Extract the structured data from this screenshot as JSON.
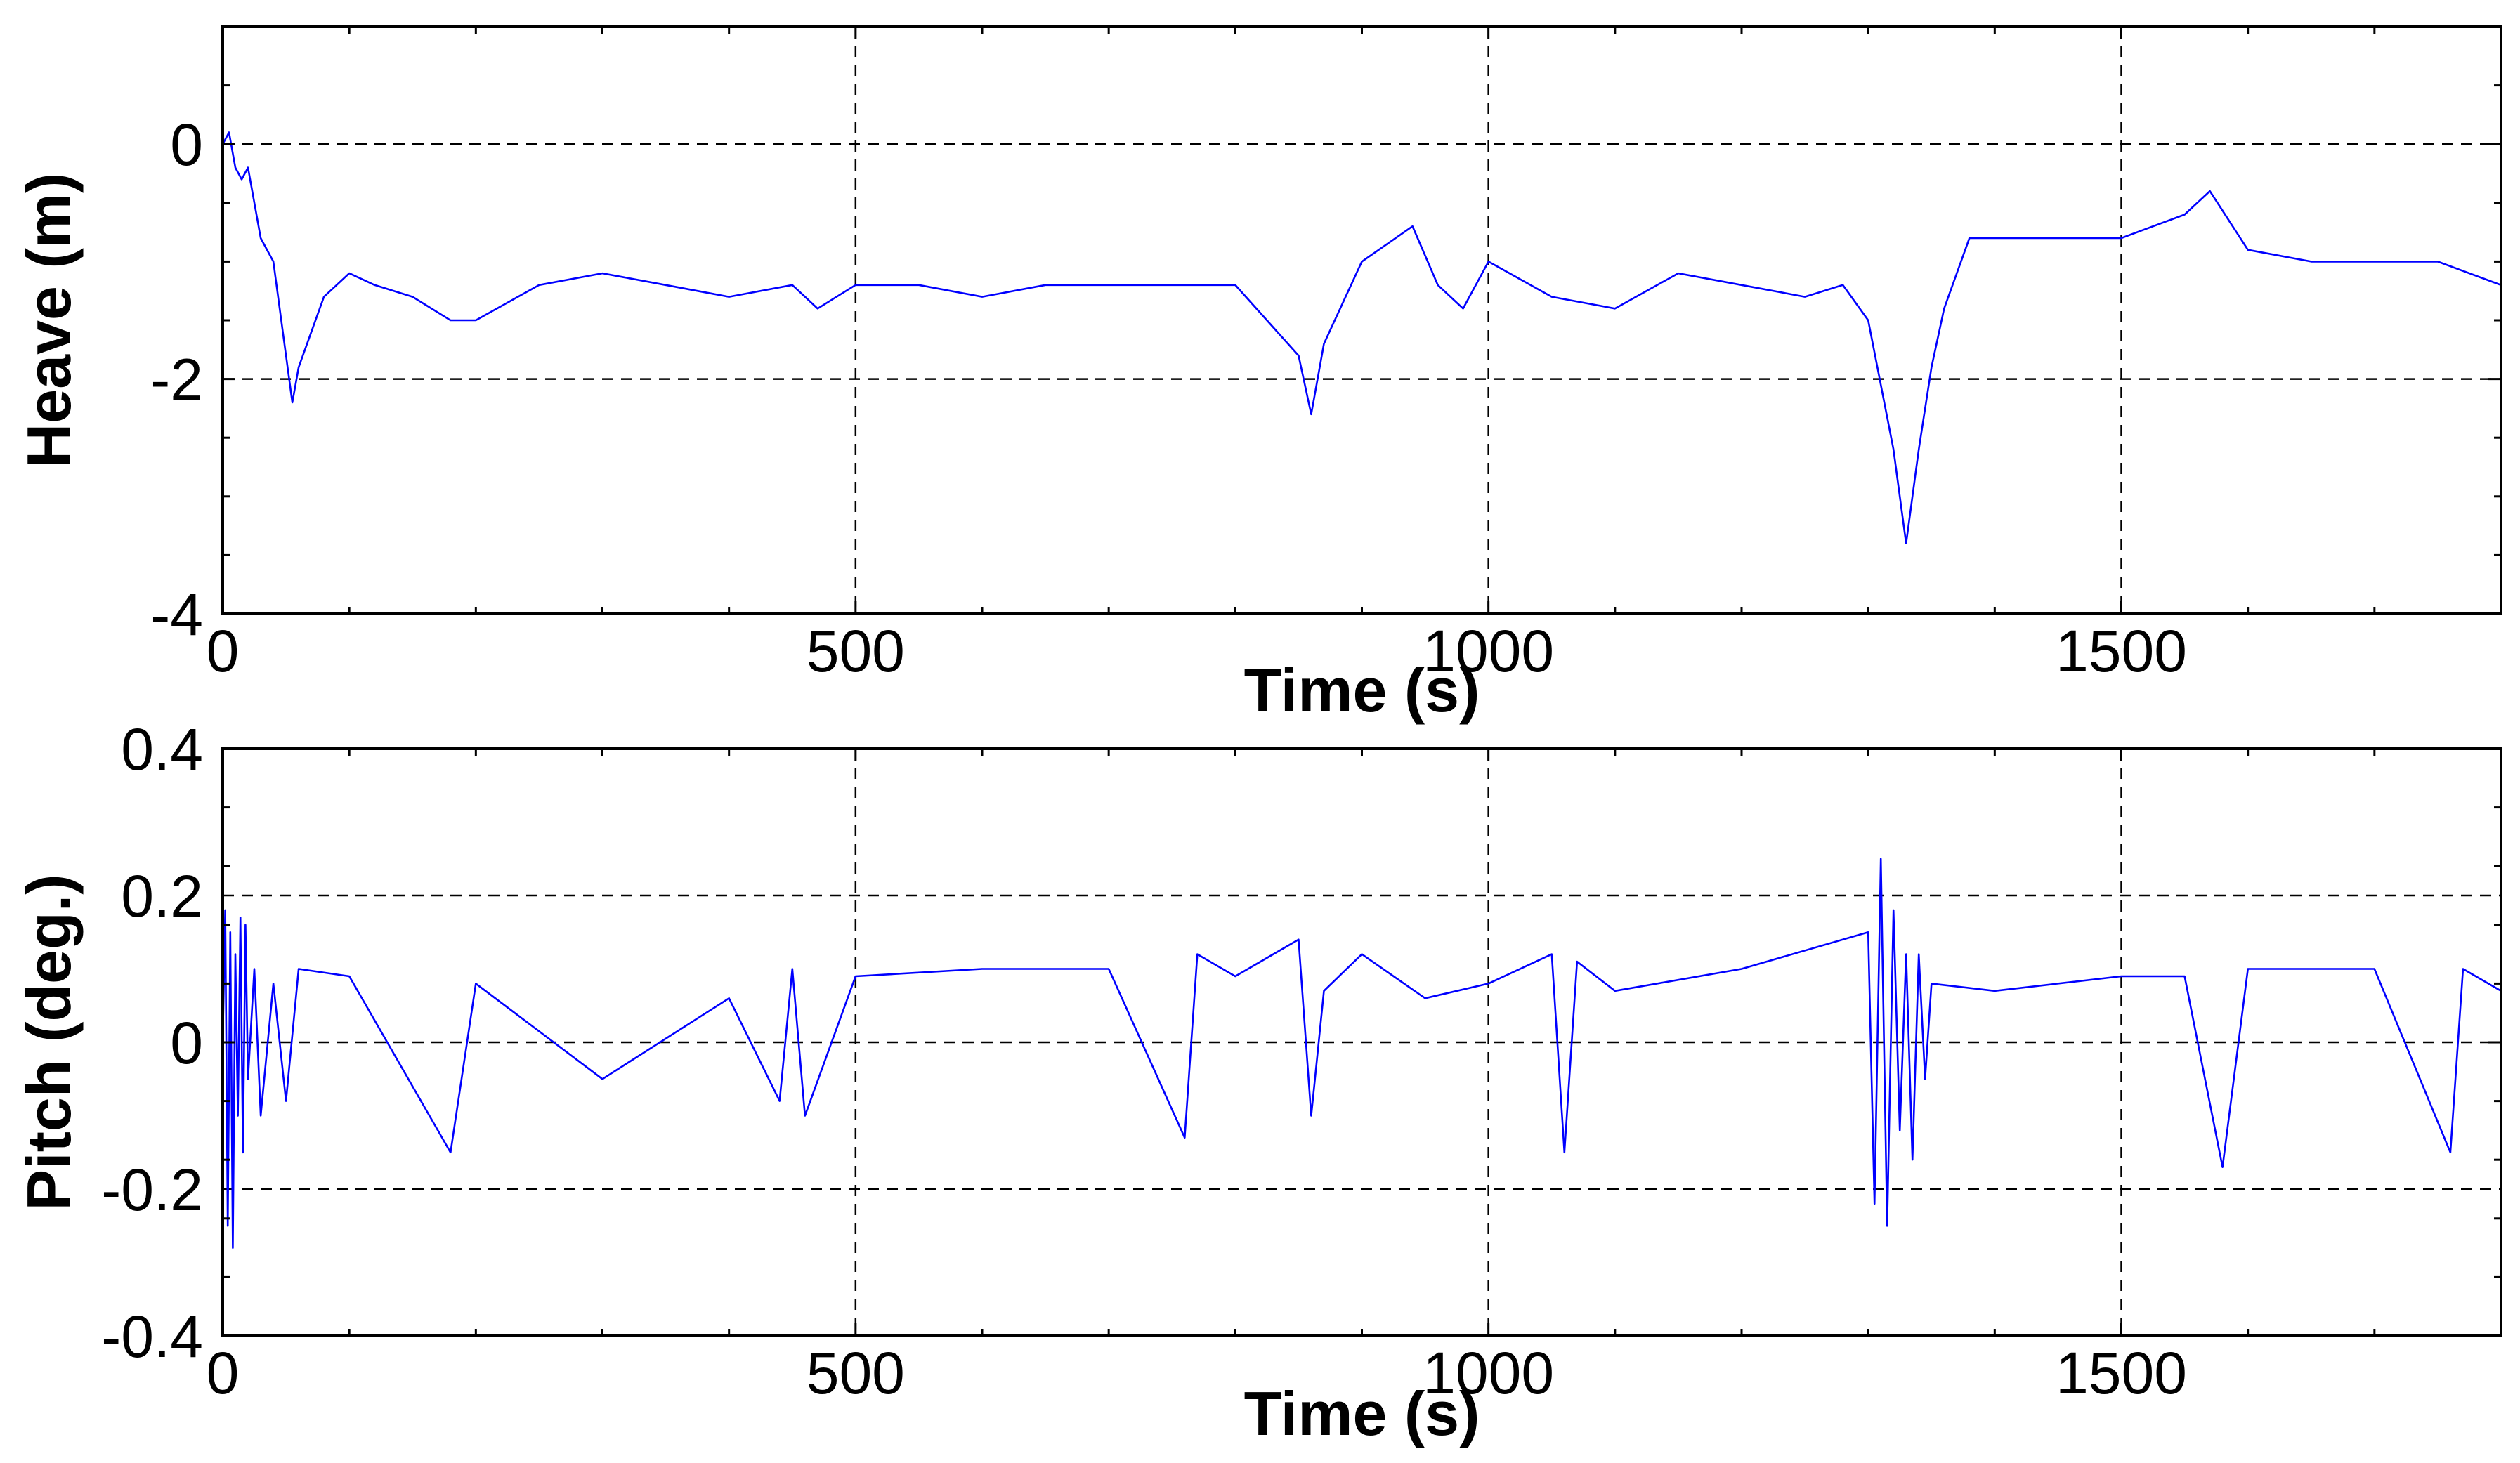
{
  "chart_data": [
    {
      "type": "line",
      "xlabel": "Time (s)",
      "ylabel": "Heave (m)",
      "xlim": [
        0,
        1800
      ],
      "ylim": [
        -4,
        1
      ],
      "xticks": [
        0,
        500,
        1000,
        1500
      ],
      "yticks": [
        -4,
        -2,
        0
      ],
      "xtick_labels": [
        "0",
        "500",
        "1000",
        "1500"
      ],
      "ytick_labels": [
        "-4",
        "-2",
        "0"
      ],
      "grid": true,
      "series": [
        {
          "color": "#0000ff",
          "x": [
            0,
            5,
            10,
            15,
            20,
            30,
            40,
            50,
            55,
            60,
            70,
            80,
            100,
            120,
            150,
            180,
            200,
            250,
            300,
            350,
            400,
            450,
            470,
            500,
            550,
            600,
            650,
            700,
            750,
            800,
            850,
            860,
            870,
            900,
            940,
            960,
            980,
            1000,
            1050,
            1100,
            1150,
            1200,
            1250,
            1280,
            1300,
            1320,
            1330,
            1340,
            1350,
            1360,
            1380,
            1400,
            1450,
            1500,
            1550,
            1570,
            1600,
            1650,
            1700,
            1750,
            1800
          ],
          "y": [
            0,
            0.1,
            -0.2,
            -0.3,
            -0.2,
            -0.8,
            -1.0,
            -1.8,
            -2.2,
            -1.9,
            -1.6,
            -1.3,
            -1.1,
            -1.2,
            -1.3,
            -1.5,
            -1.5,
            -1.2,
            -1.1,
            -1.2,
            -1.3,
            -1.2,
            -1.4,
            -1.2,
            -1.2,
            -1.3,
            -1.2,
            -1.2,
            -1.2,
            -1.2,
            -1.8,
            -2.3,
            -1.7,
            -1.0,
            -0.7,
            -1.2,
            -1.4,
            -1.0,
            -1.3,
            -1.4,
            -1.1,
            -1.2,
            -1.3,
            -1.2,
            -1.5,
            -2.6,
            -3.4,
            -2.6,
            -1.9,
            -1.4,
            -0.8,
            -0.8,
            -0.8,
            -0.8,
            -0.6,
            -0.4,
            -0.9,
            -1.0,
            -1.0,
            -1.0,
            -1.2
          ]
        }
      ]
    },
    {
      "type": "line",
      "xlabel": "Time (s)",
      "ylabel": "Pitch (deg.)",
      "xlim": [
        0,
        1800
      ],
      "ylim": [
        -0.4,
        0.4
      ],
      "xticks": [
        0,
        500,
        1000,
        1500
      ],
      "yticks": [
        -0.4,
        -0.2,
        0,
        0.2,
        0.4
      ],
      "xtick_labels": [
        "0",
        "500",
        "1000",
        "1500"
      ],
      "ytick_labels": [
        "-0.4",
        "-0.2",
        "0",
        "0.2",
        "0.4"
      ],
      "grid": true,
      "series": [
        {
          "color": "#0000ff",
          "x": [
            0,
            2,
            4,
            6,
            8,
            10,
            12,
            14,
            16,
            18,
            20,
            25,
            30,
            40,
            50,
            60,
            100,
            180,
            200,
            300,
            400,
            440,
            450,
            460,
            500,
            600,
            700,
            760,
            770,
            800,
            850,
            860,
            870,
            900,
            950,
            1000,
            1050,
            1060,
            1070,
            1100,
            1200,
            1300,
            1305,
            1310,
            1315,
            1320,
            1325,
            1330,
            1335,
            1340,
            1345,
            1350,
            1400,
            1500,
            1550,
            1580,
            1600,
            1700,
            1760,
            1770,
            1800
          ],
          "y": [
            0,
            0.18,
            -0.25,
            0.15,
            -0.28,
            0.12,
            -0.1,
            0.17,
            -0.15,
            0.16,
            -0.05,
            0.1,
            -0.1,
            0.08,
            -0.08,
            0.1,
            0.09,
            -0.15,
            0.08,
            -0.05,
            0.06,
            -0.08,
            0.1,
            -0.1,
            0.09,
            0.1,
            0.1,
            -0.13,
            0.12,
            0.09,
            0.14,
            -0.1,
            0.07,
            0.12,
            0.06,
            0.08,
            0.12,
            -0.15,
            0.11,
            0.07,
            0.1,
            0.15,
            -0.22,
            0.25,
            -0.25,
            0.18,
            -0.12,
            0.12,
            -0.16,
            0.12,
            -0.05,
            0.08,
            0.07,
            0.09,
            0.09,
            -0.17,
            0.1,
            0.1,
            -0.15,
            0.1,
            0.07
          ]
        }
      ]
    }
  ]
}
